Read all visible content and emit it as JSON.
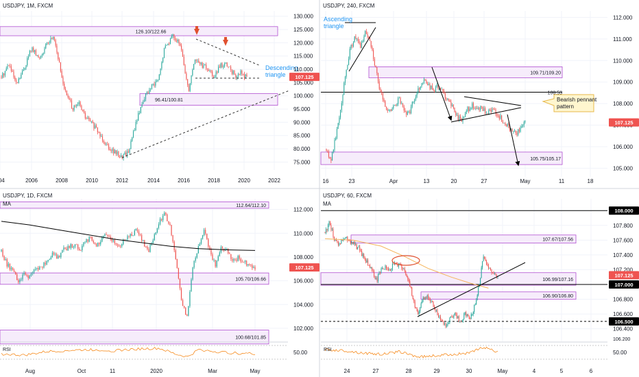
{
  "colors": {
    "up": "#26a69a",
    "down": "#ef5350",
    "zone_fill": "#f6ecfb",
    "zone_stroke": "#b04fd1",
    "blue_text": "#2196f3",
    "price_tag": "#ef5350",
    "ma": "#000000",
    "ma_hourly": "#f5b45a",
    "rsi": "#f57c00",
    "callout_fill": "#fff6cf",
    "callout_stroke": "#e7b84a",
    "arrow_red": "#e0502f"
  },
  "chart_data": [
    {
      "panel": "top-left",
      "type": "candlestick",
      "title": "USDJPY, 1M, FXCM",
      "x_ticks": [
        "004",
        "2006",
        "2008",
        "2010",
        "2012",
        "2014",
        "2016",
        "2018",
        "2020",
        "2022"
      ],
      "y_ticks": [
        "130.000",
        "125.000",
        "120.000",
        "115.000",
        "110.000",
        "105.000",
        "100.000",
        "95.000",
        "90.000",
        "85.000",
        "80.000",
        "75.000"
      ],
      "ylim": [
        72,
        132
      ],
      "last_price": "107.125",
      "zones": [
        {
          "label": "126.10/122.66",
          "low": 122.66,
          "high": 126.1
        },
        {
          "label": "96.41/100.81",
          "low": 96.41,
          "high": 100.81
        }
      ],
      "annotations": [
        {
          "text_1": "Descending",
          "text_2": "triangle"
        }
      ],
      "path": [
        [
          2004,
          107
        ],
        [
          2004.5,
          112
        ],
        [
          2005,
          104
        ],
        [
          2005.5,
          110
        ],
        [
          2006,
          118
        ],
        [
          2006.5,
          114
        ],
        [
          2007,
          119
        ],
        [
          2007.5,
          123
        ],
        [
          2008,
          108
        ],
        [
          2008.3,
          101
        ],
        [
          2008.8,
          95
        ],
        [
          2009.2,
          97
        ],
        [
          2009.6,
          92
        ],
        [
          2010,
          90
        ],
        [
          2010.5,
          86
        ],
        [
          2011,
          82
        ],
        [
          2011.5,
          79
        ],
        [
          2012,
          77
        ],
        [
          2012.5,
          79
        ],
        [
          2013,
          90
        ],
        [
          2013.5,
          99
        ],
        [
          2014,
          103
        ],
        [
          2014.5,
          106
        ],
        [
          2014.9,
          118
        ],
        [
          2015.5,
          123
        ],
        [
          2016,
          118
        ],
        [
          2016.5,
          102
        ],
        [
          2016.9,
          114
        ],
        [
          2017.3,
          112
        ],
        [
          2017.8,
          110
        ],
        [
          2018.2,
          107
        ],
        [
          2018.6,
          111
        ],
        [
          2018.9,
          112
        ],
        [
          2019.3,
          110
        ],
        [
          2019.7,
          107
        ],
        [
          2020,
          109
        ],
        [
          2020.2,
          107.5
        ],
        [
          2020.4,
          107.1
        ]
      ]
    },
    {
      "panel": "top-right",
      "type": "candlestick",
      "title": "USDJPY, 240, FXCM",
      "x_ticks": [
        "16",
        "23",
        "Apr",
        "13",
        "20",
        "27",
        "May",
        "11",
        "18"
      ],
      "y_ticks": [
        "112.000",
        "111.000",
        "110.000",
        "109.000",
        "108.000",
        "107.000",
        "106.000",
        "105.000"
      ],
      "ylim": [
        104.6,
        112.3
      ],
      "last_price": "107.125",
      "zones": [
        {
          "label": "109.71/109.20",
          "low": 109.2,
          "high": 109.71
        },
        {
          "label": "105.75/105.17",
          "low": 105.17,
          "high": 105.75
        }
      ],
      "levels": [
        {
          "label": "108.53",
          "value": 108.53
        }
      ],
      "annotations": [
        {
          "text_1": "Ascending",
          "text_2": "triangle"
        },
        {
          "text_1": "Bearish pennant",
          "text_2": "pattern"
        }
      ],
      "path": [
        [
          0,
          105.9
        ],
        [
          1,
          105.4
        ],
        [
          2,
          106.6
        ],
        [
          3,
          107.9
        ],
        [
          4,
          109.5
        ],
        [
          5,
          110.6
        ],
        [
          6,
          111.1
        ],
        [
          7,
          110.6
        ],
        [
          8,
          111.3
        ],
        [
          9,
          111.0
        ],
        [
          10,
          109.8
        ],
        [
          11,
          108.6
        ],
        [
          12,
          108.0
        ],
        [
          13,
          107.6
        ],
        [
          14,
          107.9
        ],
        [
          15,
          108.2
        ],
        [
          16,
          107.7
        ],
        [
          17,
          107.5
        ],
        [
          18,
          108.2
        ],
        [
          19,
          108.7
        ],
        [
          20,
          109.1
        ],
        [
          21,
          108.9
        ],
        [
          22,
          108.6
        ],
        [
          23,
          108.8
        ],
        [
          24,
          108.5
        ],
        [
          25,
          108.2
        ],
        [
          26,
          107.8
        ],
        [
          27,
          107.4
        ],
        [
          28,
          107.2
        ],
        [
          29,
          107.7
        ],
        [
          30,
          107.9
        ],
        [
          31,
          107.7
        ],
        [
          32,
          107.8
        ],
        [
          33,
          107.5
        ],
        [
          34,
          107.7
        ],
        [
          35,
          107.6
        ],
        [
          36,
          107.3
        ],
        [
          37,
          107.0
        ],
        [
          38,
          106.8
        ],
        [
          39,
          106.6
        ],
        [
          40,
          106.8
        ],
        [
          41,
          107.1
        ]
      ]
    },
    {
      "panel": "bottom-left",
      "type": "candlestick",
      "title": "USDJPY, 1D, FXCM",
      "indicator_ma": "MA",
      "indicator_rsi": "RSI",
      "rsi_tick": "50.00",
      "x_ticks": [
        "Aug",
        "Oct",
        "11",
        "2020",
        "Mar",
        "May"
      ],
      "y_ticks": [
        "112.000",
        "110.000",
        "108.000",
        "106.000",
        "104.000",
        "102.000"
      ],
      "ylim": [
        100.9,
        112.9
      ],
      "last_price": "107.125",
      "zones": [
        {
          "label": "112.64/112.10",
          "low": 112.1,
          "high": 112.64
        },
        {
          "label": "105.70/106.66",
          "low": 105.7,
          "high": 106.66
        },
        {
          "label": "100.68/101.85",
          "low": 100.68,
          "high": 101.85
        }
      ],
      "path": [
        [
          0,
          108.5
        ],
        [
          1,
          107.4
        ],
        [
          2,
          106.8
        ],
        [
          3,
          105.9
        ],
        [
          4,
          106.5
        ],
        [
          5,
          106.3
        ],
        [
          6,
          106.9
        ],
        [
          7,
          107.2
        ],
        [
          8,
          107.6
        ],
        [
          9,
          108.3
        ],
        [
          10,
          108.0
        ],
        [
          11,
          108.6
        ],
        [
          12,
          108.8
        ],
        [
          13,
          109.1
        ],
        [
          14,
          108.7
        ],
        [
          15,
          109.4
        ],
        [
          16,
          109.6
        ],
        [
          17,
          109.0
        ],
        [
          18,
          109.7
        ],
        [
          19,
          109.9
        ],
        [
          20,
          109.3
        ],
        [
          21,
          108.9
        ],
        [
          22,
          109.6
        ],
        [
          23,
          109.8
        ],
        [
          24,
          110.2
        ],
        [
          25,
          109.5
        ],
        [
          26,
          108.4
        ],
        [
          27,
          109.7
        ],
        [
          28,
          110.9
        ],
        [
          29,
          111.8
        ],
        [
          30,
          110.4
        ],
        [
          31,
          107.6
        ],
        [
          32,
          104.0
        ],
        [
          33,
          103.0
        ],
        [
          34,
          107.5
        ],
        [
          35,
          108.9
        ],
        [
          36,
          110.3
        ],
        [
          37,
          108.5
        ],
        [
          38,
          107.2
        ],
        [
          39,
          108.9
        ],
        [
          40,
          108.6
        ],
        [
          41,
          107.6
        ],
        [
          42,
          107.9
        ],
        [
          43,
          107.6
        ],
        [
          44,
          107.3
        ],
        [
          45,
          107.1
        ]
      ],
      "ma_path": [
        [
          0,
          111.0
        ],
        [
          5,
          110.7
        ],
        [
          10,
          110.3
        ],
        [
          15,
          109.9
        ],
        [
          20,
          109.5
        ],
        [
          25,
          109.2
        ],
        [
          30,
          108.9
        ],
        [
          35,
          108.7
        ],
        [
          40,
          108.6
        ],
        [
          45,
          108.55
        ]
      ],
      "rsi_path": [
        [
          0,
          45
        ],
        [
          4,
          41
        ],
        [
          8,
          52
        ],
        [
          12,
          56
        ],
        [
          16,
          58
        ],
        [
          20,
          55
        ],
        [
          24,
          60
        ],
        [
          28,
          62
        ],
        [
          31,
          44
        ],
        [
          33,
          36
        ],
        [
          35,
          58
        ],
        [
          38,
          52
        ],
        [
          41,
          48
        ],
        [
          45,
          46
        ]
      ]
    },
    {
      "panel": "bottom-right",
      "type": "candlestick",
      "title": "USDJPY, 60, FXCM",
      "indicator_ma": "MA",
      "indicator_rsi": "RSI",
      "rsi_tick": "50.00",
      "rsi_top_tick": "106.200",
      "x_ticks": [
        "24",
        "27",
        "28",
        "29",
        "30",
        "May",
        "4",
        "5",
        "6"
      ],
      "y_ticks": [
        "108.000",
        "107.800",
        "107.600",
        "107.400",
        "107.200",
        "107.000",
        "106.800",
        "106.600",
        "106.400"
      ],
      "ylim": [
        106.23,
        108.16
      ],
      "last_price": "107.125",
      "zones": [
        {
          "label": "107.67/107.56",
          "low": 107.56,
          "high": 107.67
        },
        {
          "label": "106.99/107.16",
          "low": 106.99,
          "high": 107.16
        },
        {
          "label": "106.90/106.80",
          "low": 106.8,
          "high": 106.9
        }
      ],
      "levels": [
        {
          "label": "108.000",
          "value": 108.0
        },
        {
          "label": "107.000",
          "value": 107.0
        },
        {
          "label": "106.500",
          "value": 106.5
        }
      ],
      "path": [
        [
          0,
          107.7
        ],
        [
          1,
          107.85
        ],
        [
          2,
          107.6
        ],
        [
          3,
          107.55
        ],
        [
          4,
          107.65
        ],
        [
          5,
          107.6
        ],
        [
          6,
          107.55
        ],
        [
          7,
          107.5
        ],
        [
          8,
          107.4
        ],
        [
          9,
          107.3
        ],
        [
          10,
          107.2
        ],
        [
          11,
          107.05
        ],
        [
          12,
          107.2
        ],
        [
          13,
          107.25
        ],
        [
          14,
          107.2
        ],
        [
          15,
          107.3
        ],
        [
          16,
          107.25
        ],
        [
          17,
          107.2
        ],
        [
          18,
          107.05
        ],
        [
          19,
          106.75
        ],
        [
          20,
          106.6
        ],
        [
          21,
          106.8
        ],
        [
          22,
          106.85
        ],
        [
          23,
          106.75
        ],
        [
          24,
          106.6
        ],
        [
          25,
          106.5
        ],
        [
          26,
          106.45
        ],
        [
          27,
          106.55
        ],
        [
          28,
          106.6
        ],
        [
          29,
          106.5
        ],
        [
          30,
          106.6
        ],
        [
          31,
          106.55
        ],
        [
          32,
          106.7
        ],
        [
          33,
          107.0
        ],
        [
          34,
          107.4
        ],
        [
          35,
          107.2
        ],
        [
          36,
          107.15
        ],
        [
          37,
          107.12
        ]
      ],
      "ma_path": [
        [
          0,
          107.62
        ],
        [
          6,
          107.6
        ],
        [
          12,
          107.52
        ],
        [
          17,
          107.38
        ],
        [
          22,
          107.22
        ],
        [
          27,
          107.1
        ],
        [
          31,
          107.02
        ],
        [
          35,
          106.95
        ]
      ],
      "rsi_path": [
        [
          0,
          58
        ],
        [
          4,
          55
        ],
        [
          8,
          48
        ],
        [
          12,
          44
        ],
        [
          16,
          52
        ],
        [
          20,
          36
        ],
        [
          24,
          40
        ],
        [
          28,
          45
        ],
        [
          31,
          48
        ],
        [
          34,
          66
        ],
        [
          36,
          55
        ],
        [
          37,
          52
        ]
      ]
    }
  ]
}
